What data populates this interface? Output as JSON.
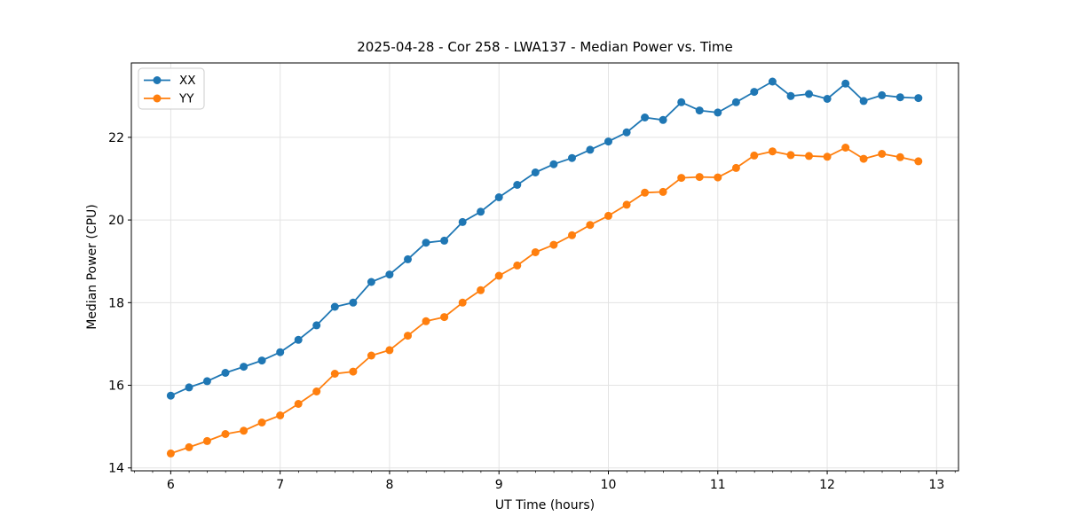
{
  "chart_data": {
    "type": "line",
    "title": "2025-04-28 - Cor 258 - LWA137 - Median Power vs. Time",
    "xlabel": "UT Time (hours)",
    "ylabel": "Median Power (CPU)",
    "xlim": [
      5.64,
      13.2
    ],
    "ylim": [
      13.93,
      23.8
    ],
    "x_major_ticks": [
      6,
      7,
      8,
      9,
      10,
      11,
      12,
      13
    ],
    "y_major_ticks": [
      14,
      16,
      18,
      20,
      22
    ],
    "x_minor_tick_step": 0.1667,
    "grid": true,
    "grid_color": "#e3e3e3",
    "background_color": "#ffffff",
    "spine_color": "#000000",
    "legend_position": "upper-left",
    "x": [
      6.0,
      6.167,
      6.333,
      6.5,
      6.667,
      6.833,
      7.0,
      7.167,
      7.333,
      7.5,
      7.667,
      7.833,
      8.0,
      8.167,
      8.333,
      8.5,
      8.667,
      8.833,
      9.0,
      9.167,
      9.333,
      9.5,
      9.667,
      9.833,
      10.0,
      10.167,
      10.333,
      10.5,
      10.667,
      10.833,
      11.0,
      11.167,
      11.333,
      11.5,
      11.667,
      11.833,
      12.0,
      12.167,
      12.333,
      12.5,
      12.667,
      12.833
    ],
    "series": [
      {
        "name": "XX",
        "color": "#1f77b4",
        "values": [
          15.75,
          15.95,
          16.1,
          16.3,
          16.45,
          16.6,
          16.8,
          17.1,
          17.45,
          17.9,
          18.0,
          18.5,
          18.68,
          19.05,
          19.45,
          19.5,
          19.95,
          20.2,
          20.55,
          20.85,
          21.15,
          21.35,
          21.5,
          21.7,
          21.9,
          22.12,
          22.48,
          22.42,
          22.85,
          22.65,
          22.6,
          22.85,
          23.1,
          23.35,
          23.0,
          23.05,
          22.93,
          23.3,
          22.88,
          23.02,
          22.97,
          22.95
        ]
      },
      {
        "name": "YY",
        "color": "#ff7f0e",
        "values": [
          14.35,
          14.5,
          14.65,
          14.82,
          14.9,
          15.1,
          15.27,
          15.55,
          15.85,
          16.28,
          16.33,
          16.72,
          16.85,
          17.2,
          17.55,
          17.65,
          18.0,
          18.3,
          18.65,
          18.9,
          19.22,
          19.4,
          19.63,
          19.88,
          20.1,
          20.37,
          20.66,
          20.68,
          21.02,
          21.04,
          21.03,
          21.26,
          21.56,
          21.66,
          21.57,
          21.55,
          21.53,
          21.75,
          21.48,
          21.6,
          21.52,
          21.42
        ]
      }
    ]
  }
}
